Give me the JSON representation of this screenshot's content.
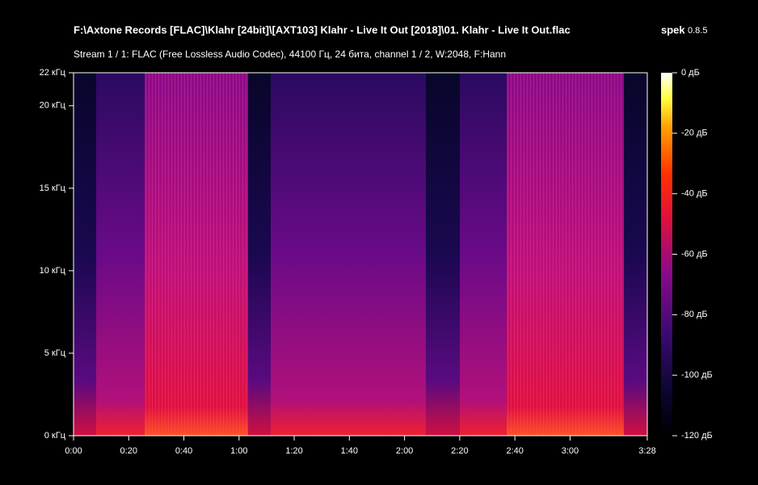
{
  "chart_data": {
    "type": "spectrogram",
    "title": "F:\\Axtone Records [FLAC]\\Klahr [24bit]\\[AXT103] Klahr - Live It Out [2018]\\01. Klahr - Live It Out.flac",
    "app_name": "spek",
    "app_version": "0.8.5",
    "subtitle": "Stream 1 / 1: FLAC (Free Lossless Audio Codec), 44100 Гц, 24 бита, channel 1 / 2, W:2048, F:Hann",
    "xlim": [
      0,
      208
    ],
    "xticks": [
      {
        "value": 0,
        "label": "0:00"
      },
      {
        "value": 20,
        "label": "0:20"
      },
      {
        "value": 40,
        "label": "0:40"
      },
      {
        "value": 60,
        "label": "1:00"
      },
      {
        "value": 80,
        "label": "1:20"
      },
      {
        "value": 100,
        "label": "1:40"
      },
      {
        "value": 120,
        "label": "2:00"
      },
      {
        "value": 140,
        "label": "2:20"
      },
      {
        "value": 160,
        "label": "2:40"
      },
      {
        "value": 180,
        "label": "3:00"
      },
      {
        "value": 208,
        "label": "3:28"
      }
    ],
    "ylim": [
      0,
      22
    ],
    "yticks": [
      {
        "value": 0,
        "label": "0 кГц"
      },
      {
        "value": 5,
        "label": "5 кГц"
      },
      {
        "value": 10,
        "label": "10 кГц"
      },
      {
        "value": 15,
        "label": "15 кГц"
      },
      {
        "value": 20,
        "label": "20 кГц"
      },
      {
        "value": 22,
        "label": "22 кГц"
      }
    ],
    "colorbar": {
      "lim": [
        -120,
        0
      ],
      "ticks": [
        {
          "value": 0,
          "label": "0 дБ"
        },
        {
          "value": -20,
          "label": "-20 дБ"
        },
        {
          "value": -40,
          "label": "-40 дБ"
        },
        {
          "value": -60,
          "label": "-60 дБ"
        },
        {
          "value": -80,
          "label": "-80 дБ"
        },
        {
          "value": -100,
          "label": "-100 дБ"
        },
        {
          "value": -120,
          "label": "-120 дБ"
        }
      ]
    }
  }
}
